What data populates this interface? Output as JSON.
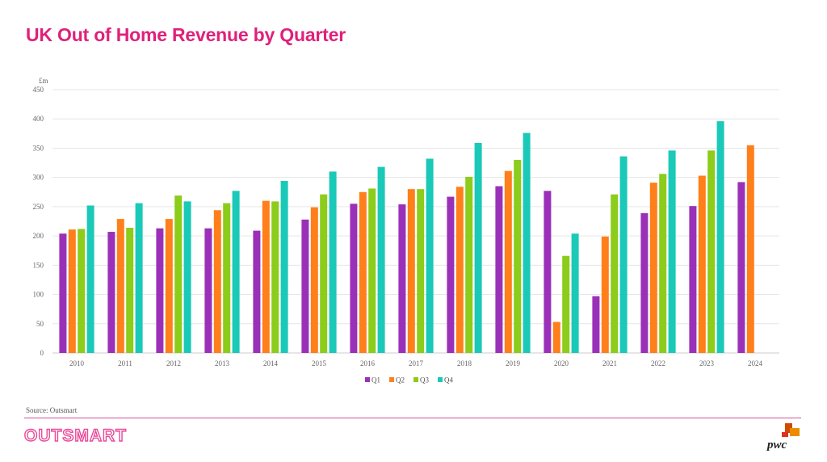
{
  "header": {
    "title": "UK Out of Home Revenue by Quarter"
  },
  "footer": {
    "source": "Source: Outsmart",
    "logo_left": "OUTSMART",
    "logo_right": "pwc"
  },
  "colors": {
    "title": "#e0207a",
    "rule": "#d8509a",
    "Q1": "#9b30b8",
    "Q2": "#ff7f1a",
    "Q3": "#8ccc1a",
    "Q4": "#1ac9b8"
  },
  "chart_data": {
    "type": "bar",
    "title": "UK Out of Home Revenue by Quarter",
    "ylabel": "£m",
    "xlabel": "",
    "ylim": [
      0,
      450
    ],
    "yticks": [
      0,
      50,
      100,
      150,
      200,
      250,
      300,
      350,
      400,
      450
    ],
    "grid": true,
    "legend_position": "bottom",
    "categories": [
      "2010",
      "2011",
      "2012",
      "2013",
      "2014",
      "2015",
      "2016",
      "2017",
      "2018",
      "2019",
      "2020",
      "2021",
      "2022",
      "2023",
      "2024"
    ],
    "series": [
      {
        "name": "Q1",
        "color": "#9b30b8",
        "values": [
          204,
          207,
          213,
          213,
          209,
          228,
          255,
          254,
          267,
          285,
          277,
          97,
          239,
          251,
          292
        ]
      },
      {
        "name": "Q2",
        "color": "#ff7f1a",
        "values": [
          211,
          229,
          229,
          244,
          260,
          249,
          275,
          280,
          284,
          311,
          53,
          199,
          291,
          303,
          355
        ]
      },
      {
        "name": "Q3",
        "color": "#8ccc1a",
        "values": [
          212,
          214,
          269,
          256,
          259,
          271,
          281,
          280,
          301,
          330,
          166,
          271,
          306,
          346,
          null
        ]
      },
      {
        "name": "Q4",
        "color": "#1ac9b8",
        "values": [
          252,
          256,
          259,
          277,
          294,
          310,
          318,
          332,
          359,
          376,
          204,
          336,
          346,
          396,
          null
        ]
      }
    ]
  }
}
